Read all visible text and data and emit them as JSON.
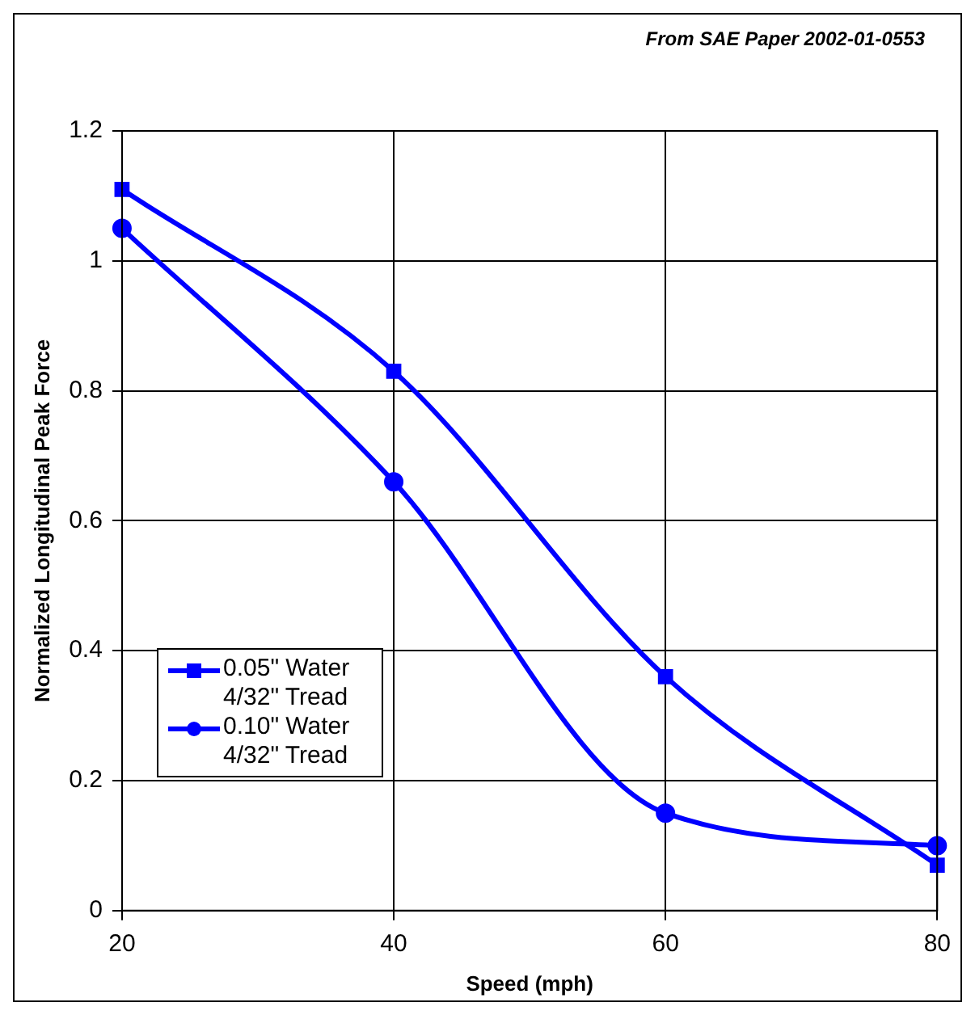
{
  "chart_data": {
    "type": "line",
    "annotations": [
      "From SAE Paper 2002-01-0553"
    ],
    "xlabel": "Speed (mph)",
    "ylabel": "Normalized Longitudinal Peak Force",
    "x": [
      20,
      40,
      60,
      80
    ],
    "xlim": [
      20,
      80
    ],
    "xticks": [
      20,
      40,
      60,
      80
    ],
    "ylim": [
      0,
      1.2
    ],
    "yticks": [
      0,
      0.2,
      0.4,
      0.6,
      0.8,
      1,
      1.2
    ],
    "grid": true,
    "legend": "left",
    "series": [
      {
        "name": "0.05\" Water 4/32\" Tread",
        "color": "#0000ff",
        "marker": "square",
        "values": [
          1.11,
          0.83,
          0.36,
          0.07
        ]
      },
      {
        "name": "0.10\" Water 4/32\" Tread",
        "color": "#0000ff",
        "marker": "circle",
        "values": [
          1.05,
          0.66,
          0.15,
          0.1
        ]
      }
    ]
  }
}
